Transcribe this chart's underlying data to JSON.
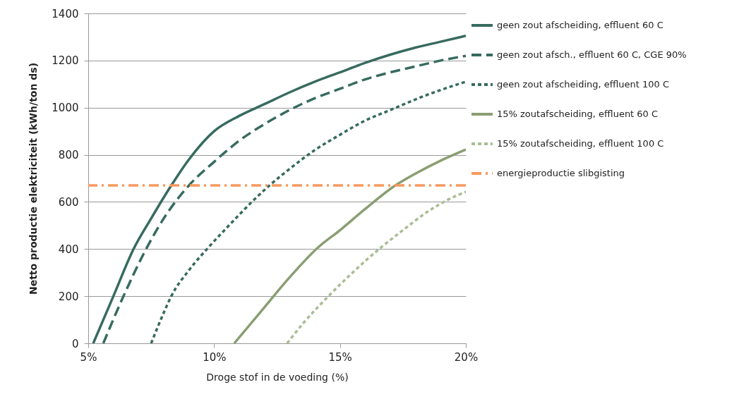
{
  "chart_data": {
    "type": "line",
    "xlabel": "Droge stof in de voeding (%)",
    "ylabel": "Netto productie elektriciteit (kWh/ton ds)",
    "xlim": [
      5,
      20
    ],
    "xticks": [
      {
        "value": 5,
        "label": "5%"
      },
      {
        "value": 10,
        "label": "10%"
      },
      {
        "value": 15,
        "label": "15%"
      },
      {
        "value": 20,
        "label": "20%"
      }
    ],
    "ylim": [
      0,
      1400
    ],
    "yticks": [
      0,
      200,
      400,
      600,
      800,
      1000,
      1200,
      1400
    ],
    "grid": "y",
    "legend": "right",
    "series": [
      {
        "name": "geen zout afscheiding, effluent 60 C",
        "color": "#376b5f",
        "line_style": "solid",
        "x": [
          5.2,
          6,
          6.8,
          7.5,
          8.3,
          9,
          10,
          11,
          12,
          13,
          14,
          15,
          16,
          17,
          18,
          19,
          20
        ],
        "values": [
          0,
          200,
          400,
          530,
          670,
          780,
          900,
          965,
          1015,
          1065,
          1110,
          1150,
          1190,
          1225,
          1255,
          1280,
          1305
        ]
      },
      {
        "name": "geen zout afsch., effluent 60 C, CGE 90%",
        "color": "#376b5f",
        "line_style": "dashed",
        "x": [
          5.6,
          6.4,
          7.3,
          8,
          9,
          10,
          11,
          12,
          13,
          14,
          15,
          16,
          17,
          18,
          19,
          20
        ],
        "values": [
          0,
          200,
          400,
          530,
          670,
          770,
          860,
          930,
          990,
          1040,
          1080,
          1120,
          1150,
          1175,
          1200,
          1220
        ]
      },
      {
        "name": "geen zout afscheiding, effluent 100 C",
        "color": "#376b5f",
        "line_style": "dotted",
        "x": [
          7.5,
          8,
          8.3,
          9,
          9.8,
          10.5,
          11.5,
          12.2,
          13,
          14,
          15,
          16,
          17,
          18,
          19,
          20
        ],
        "values": [
          0,
          130,
          200,
          310,
          410,
          490,
          600,
          670,
          740,
          820,
          885,
          945,
          990,
          1035,
          1075,
          1110
        ]
      },
      {
        "name": "15% zoutafscheiding, effluent 60 C",
        "color": "#8a9e72",
        "line_style": "solid",
        "x": [
          10.8,
          11.9,
          13,
          14.1,
          15,
          16,
          17.2,
          18,
          19,
          20
        ],
        "values": [
          0,
          140,
          280,
          404,
          480,
          570,
          670,
          720,
          775,
          822
        ]
      },
      {
        "name": "15% zoutafscheiding, effluent 100 C",
        "color": "#a9bd95",
        "line_style": "dotted",
        "x": [
          12.9,
          13.5,
          14.6,
          15.5,
          16.6,
          17.5,
          18.5,
          19.3,
          20
        ],
        "values": [
          0,
          80,
          206,
          300,
          404,
          480,
          560,
          610,
          643
        ]
      }
    ],
    "ref_lines": [
      {
        "axis": "y",
        "value": 670,
        "label": "energieproductie slibgisting",
        "color": "#f7995e",
        "line_style": "dashed"
      }
    ]
  }
}
